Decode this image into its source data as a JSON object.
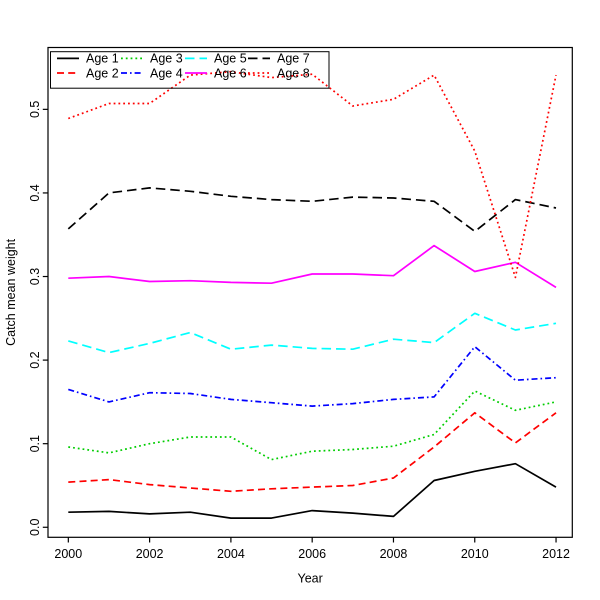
{
  "chart_data": {
    "type": "line",
    "title": "",
    "xlabel": "Year",
    "ylabel": "Catch mean weight",
    "x": [
      2000,
      2001,
      2002,
      2003,
      2004,
      2005,
      2006,
      2007,
      2008,
      2009,
      2010,
      2011,
      2012
    ],
    "xlim": [
      1999.5,
      2012.4
    ],
    "ylim": [
      -0.012,
      0.574
    ],
    "x_tick_values": [
      2000,
      2002,
      2004,
      2006,
      2008,
      2010,
      2012
    ],
    "x_tick_labels": [
      "2000",
      "2002",
      "2004",
      "2006",
      "2008",
      "2010",
      "2012"
    ],
    "y_tick_values": [
      0.0,
      0.1,
      0.2,
      0.3,
      0.4,
      0.5
    ],
    "y_tick_labels": [
      "0.0",
      "0.1",
      "0.2",
      "0.3",
      "0.4",
      "0.5"
    ],
    "grid": false,
    "legend_position": "top-left",
    "legend_rows": 2,
    "series": [
      {
        "name": "Age 1",
        "color": "#000000",
        "linestyle": "solid",
        "values": [
          0.018,
          0.019,
          0.016,
          0.018,
          0.011,
          0.011,
          0.02,
          0.017,
          0.013,
          0.056,
          0.067,
          0.076,
          0.048
        ]
      },
      {
        "name": "Age 2",
        "color": "#FF0000",
        "linestyle": "dashed",
        "values": [
          0.054,
          0.057,
          0.051,
          0.047,
          0.043,
          0.046,
          0.048,
          0.05,
          0.059,
          0.096,
          0.137,
          0.101,
          0.137
        ]
      },
      {
        "name": "Age 3",
        "color": "#00CD00",
        "linestyle": "dotted",
        "values": [
          0.096,
          0.089,
          0.1,
          0.108,
          0.108,
          0.081,
          0.091,
          0.093,
          0.097,
          0.111,
          0.163,
          0.14,
          0.15
        ]
      },
      {
        "name": "Age 4",
        "color": "#0000FF",
        "linestyle": "dashdot",
        "values": [
          0.165,
          0.15,
          0.161,
          0.16,
          0.153,
          0.149,
          0.145,
          0.148,
          0.153,
          0.156,
          0.216,
          0.176,
          0.179
        ]
      },
      {
        "name": "Age 5",
        "color": "#00FFFF",
        "linestyle": "longdash",
        "values": [
          0.223,
          0.209,
          0.22,
          0.233,
          0.213,
          0.218,
          0.214,
          0.213,
          0.225,
          0.221,
          0.256,
          0.236,
          0.244
        ]
      },
      {
        "name": "Age 6",
        "color": "#FF00FF",
        "linestyle": "solid",
        "values": [
          0.298,
          0.3,
          0.294,
          0.295,
          0.293,
          0.292,
          0.303,
          0.303,
          0.301,
          0.337,
          0.306,
          0.317,
          0.287
        ]
      },
      {
        "name": "Age 7",
        "color": "#000000",
        "linestyle": "longdash",
        "values": [
          0.357,
          0.4,
          0.406,
          0.402,
          0.396,
          0.392,
          0.39,
          0.395,
          0.394,
          0.39,
          0.354,
          0.392,
          0.382
        ]
      },
      {
        "name": "Age 8",
        "color": "#FF0000",
        "linestyle": "dotted",
        "values": [
          0.489,
          0.507,
          0.507,
          0.541,
          0.545,
          0.538,
          0.542,
          0.504,
          0.512,
          0.541,
          0.45,
          0.299,
          0.541
        ]
      }
    ]
  }
}
